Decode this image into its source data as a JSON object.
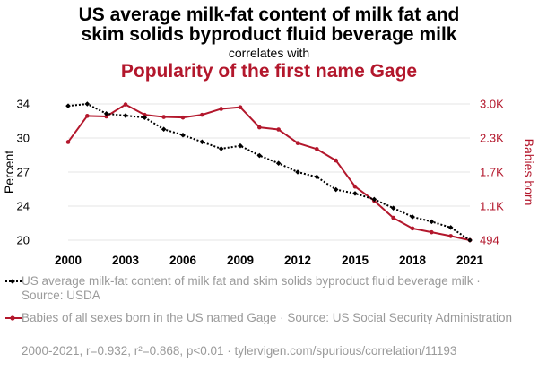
{
  "title_line1": "US average milk-fat content of milk fat and",
  "title_line2": "skim solids byproduct fluid beverage milk",
  "correlates": "correlates with",
  "subtitle": "Popularity of the first name Gage",
  "legend": {
    "series1": "US average milk-fat content of milk fat and skim solids byproduct fluid beverage milk · Source: USDA",
    "series2": "Babies of all sexes born in the US named Gage · Source: US Social Security Administration"
  },
  "footer": "2000-2021, r=0.932, r²=0.868, p<0.01 · tylervigen.com/spurious/correlation/11193",
  "colors": {
    "series1": "#000000",
    "series2": "#b3172c",
    "axis_text": "#000000",
    "legend_text": "#9a9a9a"
  },
  "chart_data": {
    "type": "line",
    "x": [
      2000,
      2001,
      2002,
      2003,
      2004,
      2005,
      2006,
      2007,
      2008,
      2009,
      2010,
      2011,
      2012,
      2013,
      2014,
      2015,
      2016,
      2017,
      2018,
      2019,
      2020,
      2021
    ],
    "xlim": [
      2000,
      2021
    ],
    "xticks": [
      "2000",
      "2003",
      "2006",
      "2009",
      "2012",
      "2015",
      "2018",
      "2021"
    ],
    "y_left": {
      "label": "Percent",
      "lim": [
        20,
        34
      ],
      "ticks": [
        "20",
        "24",
        "27",
        "30",
        "34"
      ]
    },
    "y_right": {
      "label": "Babies born",
      "lim": [
        494,
        3000
      ],
      "ticks": [
        "494",
        "1.1K",
        "1.7K",
        "2.3K",
        "3.0K"
      ]
    },
    "series": [
      {
        "axis": "left",
        "style": "dotted-diamond",
        "values": [
          33.8,
          34.0,
          33.0,
          32.8,
          32.6,
          31.4,
          30.8,
          30.1,
          29.4,
          29.7,
          28.7,
          27.9,
          27.0,
          26.5,
          25.2,
          24.8,
          24.2,
          23.3,
          22.4,
          21.9,
          21.3,
          20.0
        ]
      },
      {
        "axis": "right",
        "style": "solid-circle",
        "values": [
          2300,
          2780,
          2770,
          2990,
          2800,
          2760,
          2750,
          2800,
          2910,
          2940,
          2570,
          2530,
          2280,
          2170,
          1960,
          1480,
          1220,
          905,
          710,
          640,
          570,
          494
        ]
      }
    ]
  }
}
